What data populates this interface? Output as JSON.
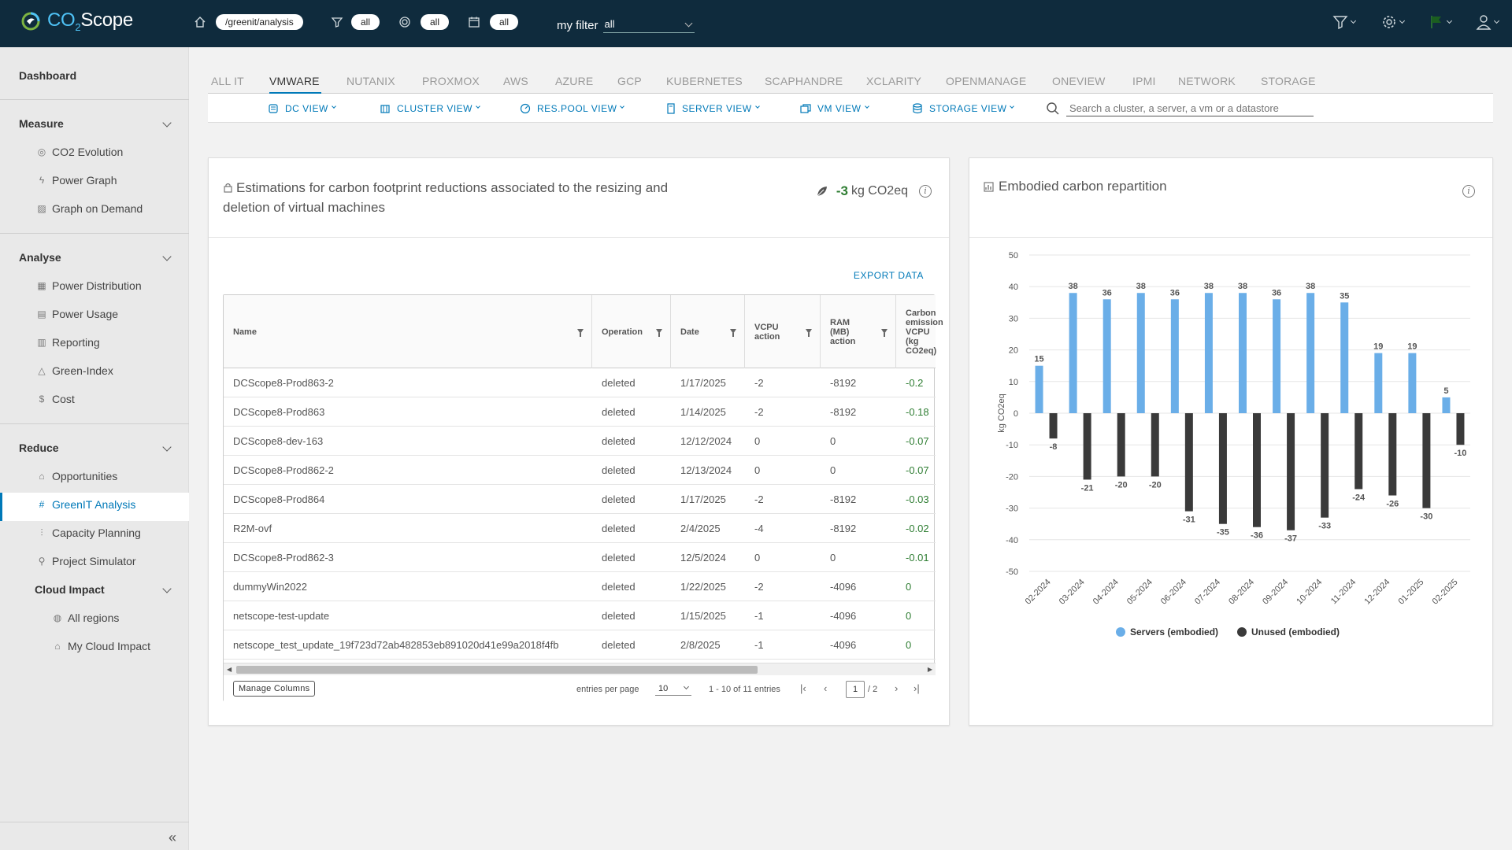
{
  "header": {
    "brand_prefix": "CO",
    "brand_sub": "2",
    "brand_suffix": "Scope",
    "path": "/greenit/analysis",
    "filter_pill": "all",
    "tag_pill": "all",
    "date_pill": "all",
    "myfilter_label": "my filter",
    "myfilter_value": "all"
  },
  "sidebar": {
    "dashboard": "Dashboard",
    "sections": [
      {
        "label": "Measure",
        "items": [
          "CO2 Evolution",
          "Power Graph",
          "Graph on Demand"
        ]
      },
      {
        "label": "Analyse",
        "items": [
          "Power Distribution",
          "Power Usage",
          "Reporting",
          "Green-Index",
          "Cost"
        ]
      },
      {
        "label": "Reduce",
        "items": [
          "Opportunities",
          "GreenIT Analysis",
          "Capacity Planning",
          "Project Simulator"
        ]
      }
    ],
    "cloud_impact": "Cloud Impact",
    "cloud_items": [
      "All regions",
      "My Cloud Impact"
    ]
  },
  "tabs": [
    "ALL IT",
    "VMWARE",
    "NUTANIX",
    "PROXMOX",
    "AWS",
    "AZURE",
    "GCP",
    "KUBERNETES",
    "SCAPHANDRE",
    "XCLARITY",
    "OPENMANAGE",
    "ONEVIEW",
    "IPMI",
    "NETWORK",
    "STORAGE"
  ],
  "subtabs": [
    "DC VIEW",
    "CLUSTER VIEW",
    "RES.POOL VIEW",
    "SERVER VIEW",
    "VM VIEW",
    "STORAGE VIEW"
  ],
  "search": {
    "placeholder": "Search a cluster, a server, a vm or a datastore"
  },
  "left_card": {
    "title": "Estimations for carbon footprint reductions associated to the resizing and deletion of virtual machines",
    "value": "-3",
    "unit": "kg CO2eq",
    "export": "EXPORT DATA",
    "columns": [
      "Name",
      "Operation",
      "Date",
      "VCPU action",
      "RAM (MB) action",
      "Carbon emission VCPU (kg CO2eq)"
    ],
    "rows": [
      [
        "DCScope8-Prod863-2",
        "deleted",
        "1/17/2025",
        "-2",
        "-8192",
        "-0.2"
      ],
      [
        "DCScope8-Prod863",
        "deleted",
        "1/14/2025",
        "-2",
        "-8192",
        "-0.18"
      ],
      [
        "DCScope8-dev-163",
        "deleted",
        "12/12/2024",
        "0",
        "0",
        "-0.07"
      ],
      [
        "DCScope8-Prod862-2",
        "deleted",
        "12/13/2024",
        "0",
        "0",
        "-0.07"
      ],
      [
        "DCScope8-Prod864",
        "deleted",
        "1/17/2025",
        "-2",
        "-8192",
        "-0.03"
      ],
      [
        "R2M-ovf",
        "deleted",
        "2/4/2025",
        "-4",
        "-8192",
        "-0.02"
      ],
      [
        "DCScope8-Prod862-3",
        "deleted",
        "12/5/2024",
        "0",
        "0",
        "-0.01"
      ],
      [
        "dummyWin2022",
        "deleted",
        "1/22/2025",
        "-2",
        "-4096",
        "0"
      ],
      [
        "netscope-test-update",
        "deleted",
        "1/15/2025",
        "-1",
        "-4096",
        "0"
      ],
      [
        "netscope_test_update_19f723d72ab482853eb891020d41e99a2018f4fb",
        "deleted",
        "2/8/2025",
        "-1",
        "-4096",
        "0"
      ]
    ],
    "manage_columns": "Manage Columns",
    "entries_per_page_label": "entries per page",
    "entries_per_page": "10",
    "range_text": "1 - 10 of 11 entries",
    "page": "1",
    "page_total": "/ 2"
  },
  "chart_data": {
    "type": "bar",
    "title": "Embodied carbon repartition",
    "ylabel": "kg CO2eq",
    "ylim": [
      -50,
      50
    ],
    "yticks": [
      50,
      40,
      30,
      20,
      10,
      0,
      -10,
      -20,
      -30,
      -40,
      -50
    ],
    "categories": [
      "02-2024",
      "03-2024",
      "04-2024",
      "05-2024",
      "06-2024",
      "07-2024",
      "08-2024",
      "09-2024",
      "10-2024",
      "11-2024",
      "12-2024",
      "01-2025",
      "02-2025"
    ],
    "series": [
      {
        "name": "Servers (embodied)",
        "color": "#6aaee8",
        "values": [
          15,
          38,
          36,
          38,
          36,
          38,
          38,
          36,
          38,
          35,
          19,
          19,
          5
        ]
      },
      {
        "name": "Unused (embodied)",
        "color": "#3a3a3a",
        "values": [
          -8,
          -21,
          -20,
          -20,
          -31,
          -35,
          -36,
          -37,
          -33,
          -24,
          -26,
          -30,
          -10
        ]
      }
    ],
    "legend": "bottom"
  }
}
